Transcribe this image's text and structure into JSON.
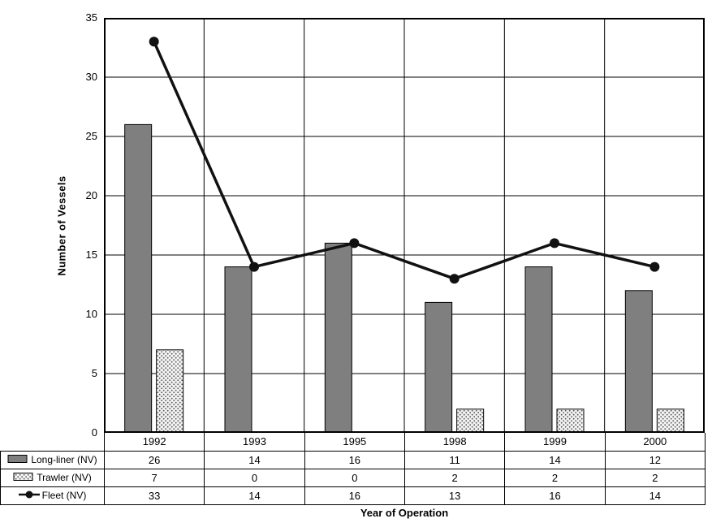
{
  "chart_data": {
    "type": "combo-bar-line",
    "title": "",
    "xlabel": "Year of Operation",
    "ylabel": "Number of Vessels",
    "categories": [
      "1992",
      "1993",
      "1995",
      "1998",
      "1999",
      "2000"
    ],
    "series": [
      {
        "name": "Long-liner (NV)",
        "type": "bar",
        "style": "solid-gray",
        "values": [
          26,
          14,
          16,
          11,
          14,
          12
        ]
      },
      {
        "name": "Trawler (NV)",
        "type": "bar",
        "style": "stipple",
        "values": [
          7,
          0,
          0,
          2,
          2,
          2
        ]
      },
      {
        "name": "Fleet (NV)",
        "type": "line",
        "style": "line-marker",
        "values": [
          33,
          14,
          16,
          13,
          16,
          14
        ]
      }
    ],
    "ylim": [
      0,
      35
    ],
    "ytick_step": 5,
    "grid": true,
    "legend_position": "table-left",
    "colors": {
      "bar_fill": "#7f7f7f",
      "bar_stroke": "#000000",
      "stipple_bg": "#f2f2f2",
      "stipple_dot": "#555555",
      "line": "#111111",
      "marker": "#111111",
      "grid": "#000000",
      "border": "#000000"
    }
  }
}
